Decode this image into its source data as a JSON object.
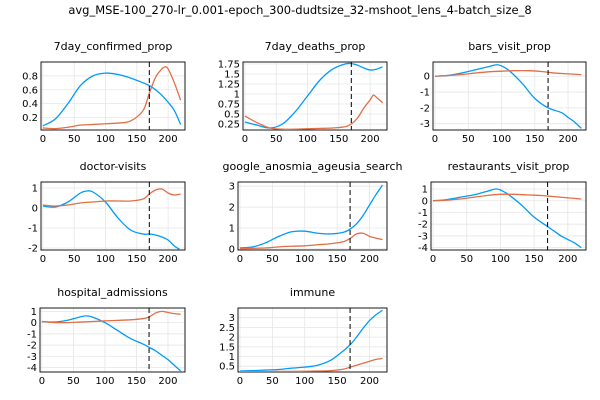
{
  "figure_title": "avg_MSE-100_270-lr_0.001-epoch_300-dudtsize_32-mshoot_lens_4-batch_size_8",
  "colors": {
    "series_1": "#009AFA",
    "series_2": "#E26F46",
    "vline": "#000000"
  },
  "chart_data": [
    {
      "type": "line",
      "title": "7day_confirmed_prop",
      "xlim": [
        -3,
        227
      ],
      "ylim": [
        0.02,
        1.0
      ],
      "xticks": [
        0,
        50,
        100,
        150,
        200
      ],
      "yticks": [
        0.2,
        0.4,
        0.6,
        0.8
      ],
      "vline": 170,
      "series": [
        {
          "x": [
            0,
            20,
            40,
            60,
            80,
            100,
            120,
            140,
            160,
            170,
            180,
            190,
            200,
            210,
            220
          ],
          "y": [
            0.08,
            0.18,
            0.4,
            0.66,
            0.8,
            0.84,
            0.82,
            0.77,
            0.7,
            0.66,
            0.6,
            0.52,
            0.42,
            0.3,
            0.1
          ]
        },
        {
          "x": [
            0,
            20,
            40,
            60,
            80,
            100,
            120,
            140,
            160,
            170,
            180,
            190,
            195,
            200,
            210,
            220
          ],
          "y": [
            0.05,
            0.04,
            0.06,
            0.09,
            0.1,
            0.11,
            0.12,
            0.15,
            0.3,
            0.55,
            0.78,
            0.9,
            0.93,
            0.9,
            0.7,
            0.45
          ]
        }
      ]
    },
    {
      "type": "line",
      "title": "7day_deaths_prop",
      "xlim": [
        -3,
        227
      ],
      "ylim": [
        0.1,
        1.8
      ],
      "xticks": [
        0,
        50,
        100,
        150,
        200
      ],
      "yticks": [
        0.25,
        0.5,
        0.75,
        1.0,
        1.25,
        1.5,
        1.75
      ],
      "vline": 170,
      "series": [
        {
          "x": [
            0,
            20,
            40,
            60,
            80,
            100,
            120,
            140,
            160,
            170,
            180,
            190,
            200,
            210,
            220
          ],
          "y": [
            0.3,
            0.22,
            0.15,
            0.25,
            0.55,
            0.95,
            1.35,
            1.62,
            1.75,
            1.76,
            1.72,
            1.65,
            1.6,
            1.62,
            1.68
          ]
        },
        {
          "x": [
            0,
            20,
            40,
            60,
            80,
            100,
            120,
            140,
            160,
            170,
            180,
            190,
            200,
            205,
            210,
            220
          ],
          "y": [
            0.45,
            0.28,
            0.15,
            0.12,
            0.12,
            0.13,
            0.14,
            0.15,
            0.18,
            0.25,
            0.4,
            0.65,
            0.85,
            0.97,
            0.92,
            0.78
          ]
        }
      ]
    },
    {
      "type": "line",
      "title": "bars_visit_prop",
      "xlim": [
        -3,
        227
      ],
      "ylim": [
        -3.4,
        0.9
      ],
      "xticks": [
        0,
        50,
        100,
        150,
        200
      ],
      "yticks": [
        -3,
        -2,
        -1,
        0
      ],
      "vline": 170,
      "series": [
        {
          "x": [
            0,
            20,
            40,
            60,
            80,
            95,
            110,
            130,
            150,
            170,
            190,
            200,
            210,
            220
          ],
          "y": [
            0.0,
            0.05,
            0.2,
            0.4,
            0.6,
            0.72,
            0.4,
            -0.4,
            -1.4,
            -2.0,
            -2.3,
            -2.6,
            -2.9,
            -3.3
          ]
        },
        {
          "x": [
            0,
            20,
            40,
            60,
            80,
            100,
            120,
            140,
            160,
            170,
            180,
            200,
            220
          ],
          "y": [
            0.0,
            0.05,
            0.1,
            0.2,
            0.28,
            0.32,
            0.35,
            0.35,
            0.3,
            0.25,
            0.2,
            0.15,
            0.1
          ]
        }
      ]
    },
    {
      "type": "line",
      "title": "doctor-visits",
      "xlim": [
        -3,
        227
      ],
      "ylim": [
        -2.1,
        1.3
      ],
      "xticks": [
        0,
        50,
        100,
        150,
        200
      ],
      "yticks": [
        -2,
        -1,
        0,
        1
      ],
      "vline": 170,
      "series": [
        {
          "x": [
            0,
            20,
            40,
            60,
            70,
            80,
            100,
            120,
            140,
            160,
            170,
            180,
            190,
            200,
            210,
            220
          ],
          "y": [
            0.1,
            0.05,
            0.3,
            0.75,
            0.85,
            0.8,
            0.3,
            -0.5,
            -1.1,
            -1.3,
            -1.3,
            -1.35,
            -1.45,
            -1.6,
            -1.9,
            -2.1
          ]
        },
        {
          "x": [
            0,
            20,
            40,
            60,
            80,
            100,
            120,
            140,
            160,
            170,
            180,
            190,
            200,
            210,
            220
          ],
          "y": [
            0.15,
            0.1,
            0.15,
            0.25,
            0.3,
            0.35,
            0.35,
            0.35,
            0.45,
            0.7,
            0.9,
            0.95,
            0.75,
            0.65,
            0.7
          ]
        }
      ]
    },
    {
      "type": "line",
      "title": "google_anosmia_ageusia_search",
      "xlim": [
        -3,
        227
      ],
      "ylim": [
        -0.05,
        3.2
      ],
      "xticks": [
        0,
        50,
        100,
        150,
        200
      ],
      "yticks": [
        0,
        1,
        2,
        3
      ],
      "vline": 170,
      "series": [
        {
          "x": [
            0,
            20,
            40,
            60,
            80,
            100,
            120,
            140,
            160,
            170,
            180,
            190,
            200,
            210,
            220
          ],
          "y": [
            0.05,
            0.1,
            0.3,
            0.6,
            0.82,
            0.85,
            0.75,
            0.72,
            0.8,
            0.95,
            1.2,
            1.6,
            2.1,
            2.6,
            3.05
          ]
        },
        {
          "x": [
            0,
            20,
            40,
            60,
            80,
            100,
            120,
            140,
            160,
            170,
            180,
            190,
            200,
            210,
            220
          ],
          "y": [
            0.02,
            0.03,
            0.05,
            0.1,
            0.13,
            0.15,
            0.2,
            0.25,
            0.35,
            0.5,
            0.72,
            0.75,
            0.6,
            0.52,
            0.45
          ]
        }
      ]
    },
    {
      "type": "line",
      "title": "restaurants_visit_prop",
      "xlim": [
        -3,
        227
      ],
      "ylim": [
        -4.2,
        1.6
      ],
      "xticks": [
        0,
        50,
        100,
        150,
        200
      ],
      "yticks": [
        -4,
        -3,
        -2,
        -1,
        0,
        1
      ],
      "vline": 170,
      "series": [
        {
          "x": [
            0,
            20,
            40,
            60,
            80,
            95,
            110,
            130,
            150,
            170,
            180,
            190,
            200,
            210,
            220
          ],
          "y": [
            0.0,
            0.1,
            0.3,
            0.5,
            0.8,
            1.0,
            0.6,
            -0.3,
            -1.4,
            -2.2,
            -2.6,
            -3.0,
            -3.3,
            -3.6,
            -4.0
          ]
        },
        {
          "x": [
            0,
            20,
            40,
            60,
            80,
            100,
            120,
            140,
            160,
            170,
            180,
            190,
            200,
            210,
            220
          ],
          "y": [
            0.0,
            0.05,
            0.15,
            0.3,
            0.45,
            0.55,
            0.55,
            0.5,
            0.45,
            0.4,
            0.35,
            0.3,
            0.25,
            0.2,
            0.15
          ]
        }
      ]
    },
    {
      "type": "line",
      "title": "hospital_admissions",
      "xlim": [
        -3,
        227
      ],
      "ylim": [
        -4.4,
        1.3
      ],
      "xticks": [
        0,
        50,
        100,
        150,
        200
      ],
      "yticks": [
        -4,
        -3,
        -2,
        -1,
        0,
        1
      ],
      "vline": 170,
      "series": [
        {
          "x": [
            0,
            20,
            40,
            60,
            70,
            80,
            100,
            120,
            140,
            160,
            170,
            180,
            190,
            200,
            210,
            220
          ],
          "y": [
            0.1,
            0.05,
            0.2,
            0.5,
            0.6,
            0.5,
            0.0,
            -0.7,
            -1.4,
            -1.9,
            -2.2,
            -2.5,
            -2.9,
            -3.3,
            -3.8,
            -4.3
          ]
        },
        {
          "x": [
            0,
            20,
            40,
            60,
            80,
            100,
            120,
            140,
            160,
            170,
            180,
            190,
            200,
            210,
            220
          ],
          "y": [
            0.1,
            0.0,
            0.0,
            0.05,
            0.1,
            0.15,
            0.2,
            0.25,
            0.35,
            0.5,
            0.85,
            1.0,
            0.9,
            0.8,
            0.75
          ]
        }
      ]
    },
    {
      "type": "line",
      "title": "immune",
      "xlim": [
        -3,
        227
      ],
      "ylim": [
        0.2,
        3.5
      ],
      "xticks": [
        0,
        50,
        100,
        150,
        200
      ],
      "yticks": [
        0.5,
        1.0,
        1.5,
        2.0,
        2.5,
        3.0
      ],
      "vline": 170,
      "series": [
        {
          "x": [
            0,
            20,
            40,
            60,
            80,
            100,
            120,
            140,
            160,
            170,
            180,
            190,
            200,
            210,
            220
          ],
          "y": [
            0.25,
            0.27,
            0.3,
            0.33,
            0.4,
            0.45,
            0.55,
            0.8,
            1.3,
            1.6,
            2.0,
            2.45,
            2.85,
            3.15,
            3.38
          ]
        },
        {
          "x": [
            0,
            20,
            40,
            60,
            80,
            100,
            120,
            140,
            160,
            170,
            180,
            190,
            200,
            210,
            220
          ],
          "y": [
            0.22,
            0.22,
            0.22,
            0.23,
            0.23,
            0.24,
            0.25,
            0.27,
            0.35,
            0.45,
            0.55,
            0.65,
            0.75,
            0.85,
            0.9
          ]
        }
      ]
    }
  ]
}
